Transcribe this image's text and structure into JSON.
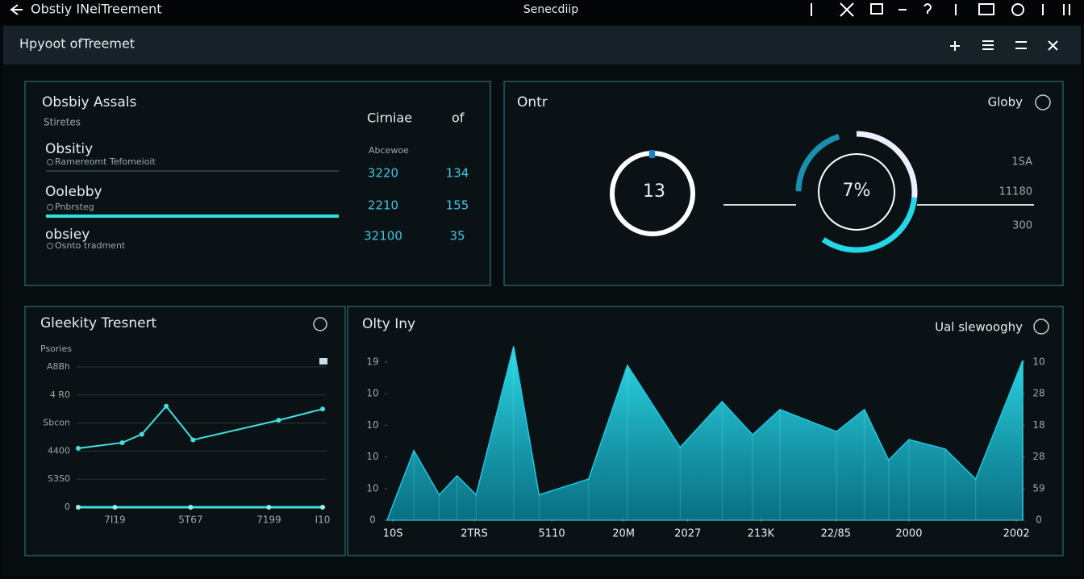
{
  "app_bar": {
    "title": "Obstiy INeiTreement",
    "center": "Senecdiip"
  },
  "window": {
    "title": "Hpyoot ofTreemet"
  },
  "assets": {
    "title": "Obsbiy Assals",
    "subtitle": "Stiretes",
    "col1": "Cirniae",
    "col2": "of",
    "col_sub": "Abcewoe",
    "rows": [
      {
        "name": "Obsitiy",
        "note": "Ramereomt Tefomeioit",
        "v1": "3220",
        "v2": "134"
      },
      {
        "name": "Oolebby",
        "note": "Pnbrsteg",
        "v1": "2210",
        "v2": "155"
      },
      {
        "name": "obsiey",
        "note": "Osnto tradment",
        "v1": "32100",
        "v2": "35"
      }
    ]
  },
  "gauges": {
    "title": "Ontr",
    "right_label": "Globy",
    "gauge1": "13",
    "gauge2": "7%",
    "side_labels": [
      "1SA",
      "11180",
      "300"
    ]
  },
  "line_panel": {
    "title": "Gleekity Tresnert",
    "subtitle": "Psories",
    "chart_data": {
      "type": "line",
      "xlim": [
        0,
        10
      ],
      "ylim": [
        0,
        5
      ],
      "xticks": [
        {
          "value": 1.5,
          "label": "7I19"
        },
        {
          "value": 4.6,
          "label": "5T67"
        },
        {
          "value": 7.8,
          "label": "7199"
        },
        {
          "value": 10,
          "label": "I10"
        }
      ],
      "yticks": [
        0,
        {
          "value": 1,
          "label": "S3S0"
        },
        {
          "value": 2,
          "label": "4400"
        },
        {
          "value": 3,
          "label": "Sbcon"
        },
        {
          "value": 4,
          "label": "4 R0"
        },
        {
          "value": 5,
          "label": "A8Bh"
        }
      ],
      "grid": true,
      "series": [
        {
          "color": "#3fe0e0",
          "x": [
            0,
            1.8,
            2.6,
            3.6,
            4.7,
            8.2,
            10
          ],
          "values": [
            2.1,
            2.3,
            2.6,
            3.6,
            2.4,
            3.1,
            3.5
          ]
        },
        {
          "color": "#3fe0e0",
          "x": [
            0,
            1.5,
            4.6,
            7.8,
            10
          ],
          "values": [
            0,
            0,
            0,
            0,
            0
          ]
        }
      ]
    }
  },
  "area_panel": {
    "title": "Olty Iny",
    "right_label": "Ual slewooghy",
    "chart_data": {
      "type": "area",
      "xlim": [
        0,
        100
      ],
      "ylim": [
        0,
        5.6
      ],
      "xticks": [
        {
          "value": 0.9,
          "label": "10S"
        },
        {
          "value": 13.7,
          "label": "2TRS"
        },
        {
          "value": 25.9,
          "label": "5110"
        },
        {
          "value": 37.2,
          "label": "20M"
        },
        {
          "value": 47.3,
          "label": "2027"
        },
        {
          "value": 58.8,
          "label": "213K"
        },
        {
          "value": 70.6,
          "label": "22/85"
        },
        {
          "value": 82.1,
          "label": "2000"
        },
        {
          "value": 99,
          "label": "2002"
        }
      ],
      "yticks": [
        0,
        {
          "value": 1,
          "label": "10"
        },
        {
          "value": 2,
          "label": "10"
        },
        {
          "value": 3,
          "label": "10"
        },
        {
          "value": 4,
          "label": "10"
        },
        {
          "value": 5,
          "label": "19"
        }
      ],
      "y2ticks": [
        0,
        {
          "value": 1,
          "label": "59"
        },
        {
          "value": 2,
          "label": "28"
        },
        {
          "value": 3,
          "label": "18"
        },
        {
          "value": 4,
          "label": "28"
        },
        {
          "value": 5,
          "label": "10"
        }
      ],
      "series": [
        {
          "color": "#1ec8e0",
          "x": [
            0,
            4.2,
            8.2,
            11,
            14,
            19.9,
            23.9,
            31.7,
            37.8,
            46.1,
            52.7,
            57.5,
            61.8,
            70.7,
            75.1,
            78.9,
            82.1,
            87.8,
            92.6,
            100
          ],
          "values": [
            0,
            2.2,
            0.8,
            1.4,
            0.8,
            5.5,
            0.8,
            1.3,
            4.9,
            2.3,
            3.75,
            2.7,
            3.5,
            2.8,
            3.5,
            1.9,
            2.55,
            2.25,
            1.3,
            5.05
          ]
        }
      ]
    }
  }
}
